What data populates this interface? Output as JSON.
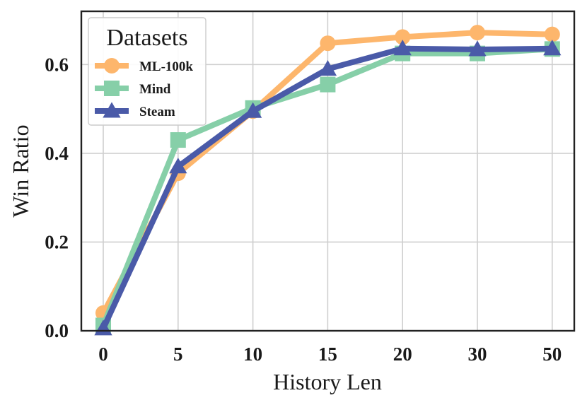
{
  "chart_data": {
    "type": "line",
    "categories": [
      "0",
      "5",
      "10",
      "15",
      "20",
      "30",
      "50"
    ],
    "xlabel": "History Len",
    "ylabel": "Win Ratio",
    "ylim": [
      0,
      0.72
    ],
    "yticks": [
      "0.0",
      "0.2",
      "0.4",
      "0.6"
    ],
    "ytick_values": [
      0,
      0.2,
      0.4,
      0.6
    ],
    "grid": true,
    "legend": {
      "title": "Datasets",
      "placement": "top-left"
    },
    "series": [
      {
        "name": "ML-100k",
        "values": [
          0.04,
          0.355,
          0.495,
          0.648,
          0.662,
          0.672,
          0.668
        ],
        "color": "#fdb66c",
        "marker": "circle"
      },
      {
        "name": "Mind",
        "values": [
          0.012,
          0.43,
          0.502,
          0.555,
          0.625,
          0.625,
          0.635
        ],
        "color": "#86cfa8",
        "marker": "square"
      },
      {
        "name": "Steam",
        "values": [
          0.005,
          0.37,
          0.495,
          0.59,
          0.636,
          0.634,
          0.636
        ],
        "color": "#4a5aa8",
        "marker": "triangle"
      }
    ]
  }
}
